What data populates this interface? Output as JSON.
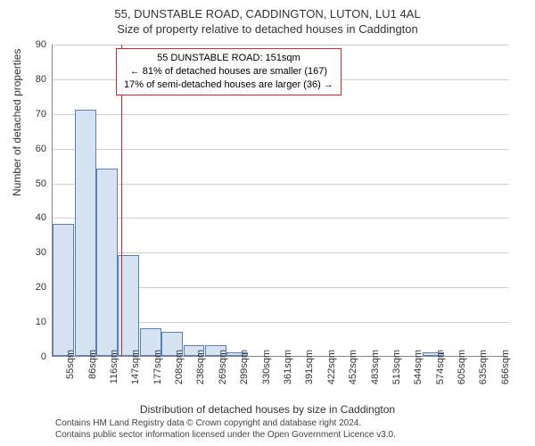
{
  "title": "55, DUNSTABLE ROAD, CADDINGTON, LUTON, LU1 4AL",
  "subtitle": "Size of property relative to detached houses in Caddington",
  "ylabel": "Number of detached properties",
  "xlabel": "Distribution of detached houses by size in Caddington",
  "chart": {
    "type": "histogram",
    "ylim": [
      0,
      90
    ],
    "ytick_step": 10,
    "yticks": [
      0,
      10,
      20,
      30,
      40,
      50,
      60,
      70,
      80,
      90
    ],
    "xticks": [
      "55sqm",
      "86sqm",
      "116sqm",
      "147sqm",
      "177sqm",
      "208sqm",
      "238sqm",
      "269sqm",
      "299sqm",
      "330sqm",
      "361sqm",
      "391sqm",
      "422sqm",
      "452sqm",
      "483sqm",
      "513sqm",
      "544sqm",
      "574sqm",
      "605sqm",
      "635sqm",
      "666sqm"
    ],
    "bar_count": 21,
    "values": [
      38,
      71,
      54,
      29,
      8,
      7,
      3,
      3,
      1,
      0,
      0,
      0,
      0,
      0,
      0,
      0,
      0,
      1,
      0,
      0,
      0
    ],
    "bar_fill": "#d6e3f3",
    "bar_stroke": "#5a7fb5",
    "bar_stroke_width": 1,
    "grid_color": "#d0d0d0",
    "axis_color": "#888888",
    "background": "#ffffff",
    "label_fontsize": 11,
    "tick_fontsize": 11,
    "highlight_line": {
      "position_index": 3.15,
      "color": "#d62728",
      "width": 1
    }
  },
  "annotation": {
    "line1": "55 DUNSTABLE ROAD: 151sqm",
    "line2": "← 81% of detached houses are smaller (167)",
    "line3": "17% of semi-detached houses are larger (36) →",
    "border_color": "#d62728",
    "background": "#ffffff",
    "fontsize": 11
  },
  "footer": {
    "line1": "Contains HM Land Registry data © Crown copyright and database right 2024.",
    "line2": "Contains public sector information licensed under the Open Government Licence v3.0."
  }
}
